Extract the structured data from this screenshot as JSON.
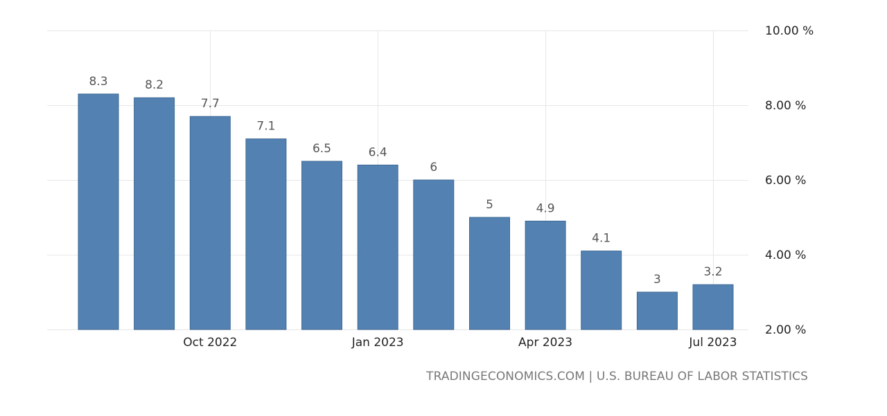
{
  "source": "TRADINGECONOMICS.COM | U.S. BUREAU OF LABOR STATISTICS",
  "colors": {
    "bar": "#5381b1",
    "bar_border": "#3f6a96",
    "grid": "#e6e6e6",
    "label": "#555555",
    "axis_text": "#222222",
    "source_text": "#777777"
  },
  "chart_data": {
    "type": "bar",
    "title": "",
    "xlabel": "",
    "ylabel": "",
    "categories": [
      "2022-08",
      "2022-09",
      "2022-10",
      "2022-11",
      "2022-12",
      "2023-01",
      "2023-02",
      "2023-03",
      "2023-04",
      "2023-05",
      "2023-06",
      "2023-07"
    ],
    "values": [
      8.3,
      8.2,
      7.7,
      7.1,
      6.5,
      6.4,
      6,
      5,
      4.9,
      4.1,
      3,
      3.2
    ],
    "value_labels": [
      "8.3",
      "8.2",
      "7.7",
      "7.1",
      "6.5",
      "6.4",
      "6",
      "5",
      "4.9",
      "4.1",
      "3",
      "3.2"
    ],
    "ylim": [
      2,
      10
    ],
    "y_ticks": [
      2,
      4,
      6,
      8,
      10
    ],
    "y_tick_labels": [
      "2.00 %",
      "4.00 %",
      "6.00 %",
      "8.00 %",
      "10.00 %"
    ],
    "y_axis_side": "right",
    "x_ticks": [
      {
        "category": "2022-10",
        "label": "Oct 2022"
      },
      {
        "category": "2023-01",
        "label": "Jan 2023"
      },
      {
        "category": "2023-04",
        "label": "Apr 2023"
      },
      {
        "category": "2023-07",
        "label": "Jul 2023"
      }
    ],
    "grid": true,
    "legend": "none"
  }
}
